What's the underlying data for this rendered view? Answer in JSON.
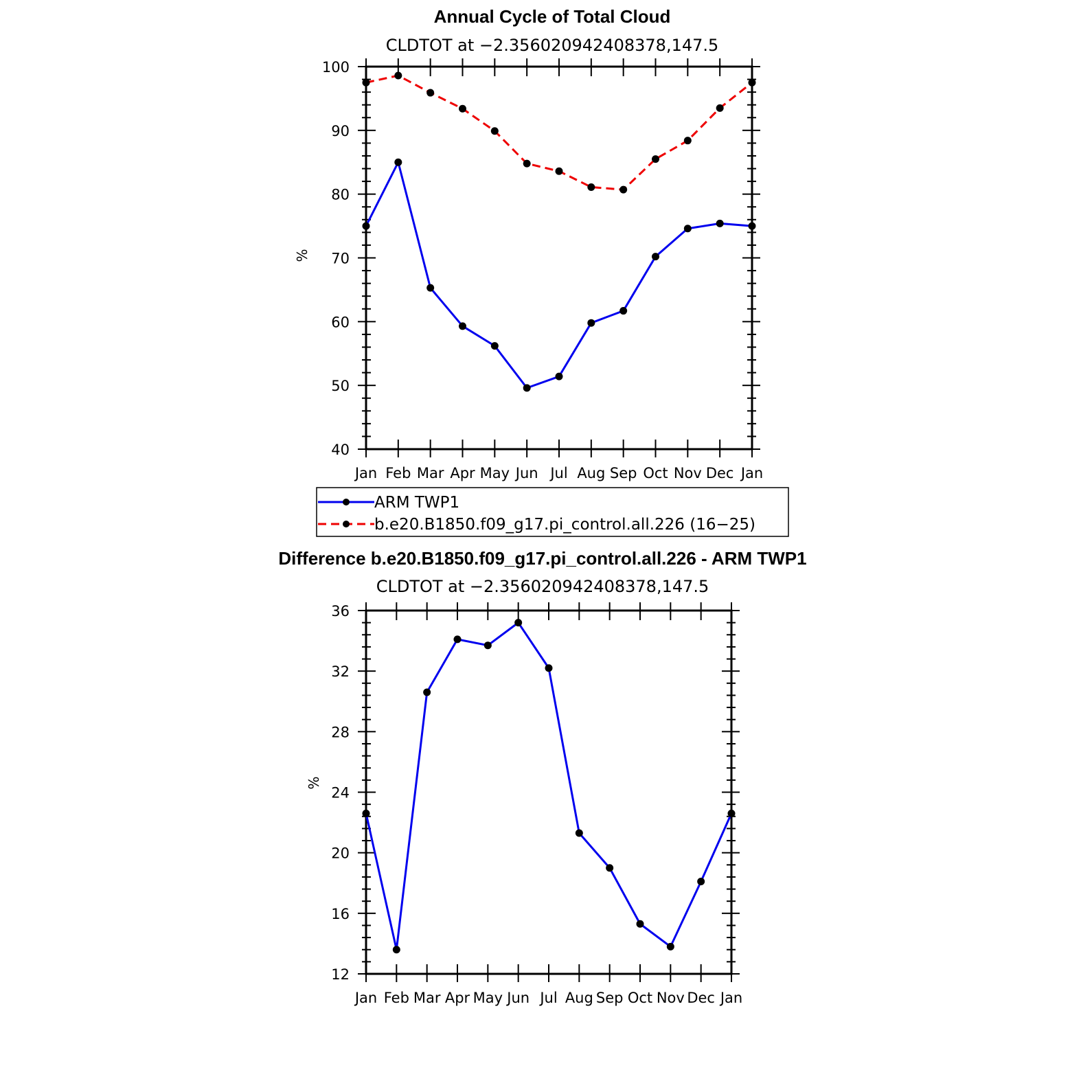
{
  "chart_data": [
    {
      "type": "line",
      "title": "Annual Cycle of Total Cloud",
      "subtitle": "CLDTOT at −2.356020942408378,147.5",
      "xlabel": "",
      "ylabel": "%",
      "categories": [
        "Jan",
        "Feb",
        "Mar",
        "Apr",
        "May",
        "Jun",
        "Jul",
        "Aug",
        "Sep",
        "Oct",
        "Nov",
        "Dec",
        "Jan"
      ],
      "ylim": [
        40,
        100
      ],
      "yticks": [
        40,
        50,
        60,
        70,
        80,
        90,
        100
      ],
      "series": [
        {
          "name": "ARM TWP1",
          "color": "#0000ee",
          "dash": "solid",
          "values": [
            75.0,
            85.0,
            65.3,
            59.3,
            56.2,
            49.6,
            51.4,
            59.8,
            61.7,
            70.2,
            74.6,
            75.4,
            75.0
          ]
        },
        {
          "name": "b.e20.B1850.f09_g17.pi_control.all.226 (16−25)",
          "color": "#ee0000",
          "dash": "dashed",
          "values": [
            97.5,
            98.6,
            95.9,
            93.4,
            89.9,
            84.8,
            83.6,
            81.1,
            80.7,
            85.5,
            88.4,
            93.5,
            97.5
          ]
        }
      ],
      "legend": [
        {
          "label": "ARM TWP1"
        },
        {
          "label": "b.e20.B1850.f09_g17.pi_control.all.226 (16−25)"
        }
      ]
    },
    {
      "type": "line",
      "title": "Difference b.e20.B1850.f09_g17.pi_control.all.226 - ARM TWP1",
      "subtitle": "CLDTOT at −2.356020942408378,147.5",
      "xlabel": "",
      "ylabel": "%",
      "categories": [
        "Jan",
        "Feb",
        "Mar",
        "Apr",
        "May",
        "Jun",
        "Jul",
        "Aug",
        "Sep",
        "Oct",
        "Nov",
        "Dec",
        "Jan"
      ],
      "ylim": [
        12,
        36
      ],
      "yticks": [
        12,
        16,
        20,
        24,
        28,
        32,
        36
      ],
      "series": [
        {
          "name": "Difference",
          "color": "#0000ee",
          "dash": "solid",
          "values": [
            22.6,
            13.6,
            30.6,
            34.1,
            33.7,
            35.2,
            32.2,
            21.3,
            19.0,
            15.3,
            13.8,
            18.1,
            22.6
          ]
        }
      ]
    }
  ]
}
